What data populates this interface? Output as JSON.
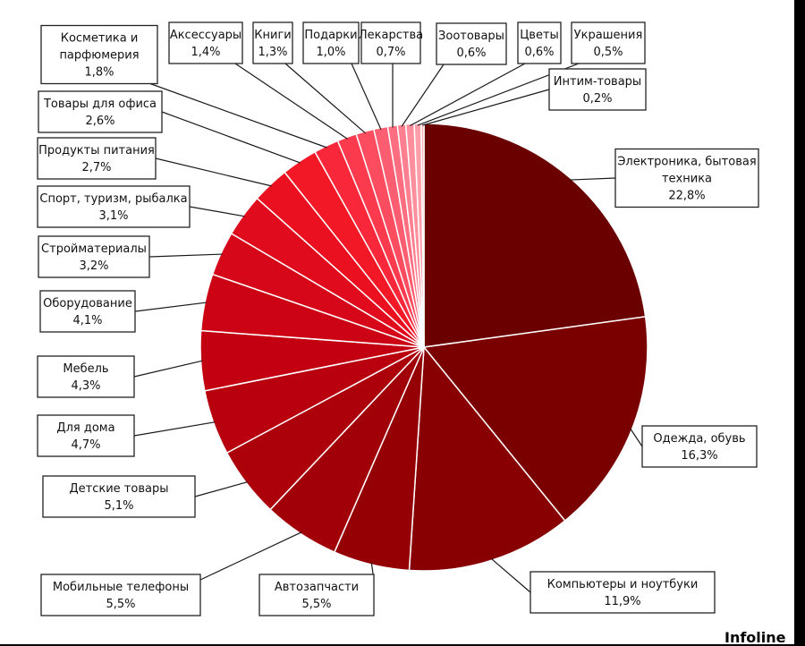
{
  "chart_data": {
    "type": "pie",
    "slices": [
      {
        "label": [
          "Электроника, бытовая",
          "техника"
        ],
        "value": 22.8,
        "display": "22,8%",
        "color": "#6a0000"
      },
      {
        "label": [
          "Одежда, обувь"
        ],
        "value": 16.3,
        "display": "16,3%",
        "color": "#7a0000"
      },
      {
        "label": [
          "Компьютеры и ноутбуки"
        ],
        "value": 11.9,
        "display": "11,9%",
        "color": "#890003"
      },
      {
        "label": [
          "Автозапчасти"
        ],
        "value": 5.5,
        "display": "5,5%",
        "color": "#950005"
      },
      {
        "label": [
          "Мобильные телефоны"
        ],
        "value": 5.5,
        "display": "5,5%",
        "color": "#a10008"
      },
      {
        "label": [
          "Детские товары"
        ],
        "value": 5.1,
        "display": "5,1%",
        "color": "#ac000b"
      },
      {
        "label": [
          "Для дома"
        ],
        "value": 4.7,
        "display": "4,7%",
        "color": "#b8000e"
      },
      {
        "label": [
          "Мебель"
        ],
        "value": 4.3,
        "display": "4,3%",
        "color": "#c20011"
      },
      {
        "label": [
          "Оборудование"
        ],
        "value": 4.1,
        "display": "4,1%",
        "color": "#cc0314"
      },
      {
        "label": [
          "Стройматериалы"
        ],
        "value": 3.2,
        "display": "3,2%",
        "color": "#d60718"
      },
      {
        "label": [
          "Спорт, туризм, рыбалка"
        ],
        "value": 3.1,
        "display": "3,1%",
        "color": "#e00b1c"
      },
      {
        "label": [
          "Продукты питания"
        ],
        "value": 2.7,
        "display": "2,7%",
        "color": "#ea1020"
      },
      {
        "label": [
          "Товары для офиса"
        ],
        "value": 2.6,
        "display": "2,6%",
        "color": "#f31826"
      },
      {
        "label": [
          "Косметика и",
          "парфюмерия"
        ],
        "value": 1.8,
        "display": "1,8%",
        "color": "#f8273a"
      },
      {
        "label": [
          "Аксессуары"
        ],
        "value": 1.4,
        "display": "1,4%",
        "color": "#fb3a4e"
      },
      {
        "label": [
          "Книги"
        ],
        "value": 1.3,
        "display": "1,3%",
        "color": "#fc4c60"
      },
      {
        "label": [
          "Подарки"
        ],
        "value": 1.0,
        "display": "1,0%",
        "color": "#fd5d70"
      },
      {
        "label": [
          "Лекарства"
        ],
        "value": 0.7,
        "display": "0,7%",
        "color": "#fe6e80"
      },
      {
        "label": [
          "Зоотовары"
        ],
        "value": 0.6,
        "display": "0,6%",
        "color": "#fe7f8f"
      },
      {
        "label": [
          "Цветы"
        ],
        "value": 0.6,
        "display": "0,6%",
        "color": "#ff8f9d"
      },
      {
        "label": [
          "Украшения"
        ],
        "value": 0.5,
        "display": "0,5%",
        "color": "#ff9faa"
      },
      {
        "label": [
          "Интим-товары"
        ],
        "value": 0.2,
        "display": "0,2%",
        "color": "#ffafb8"
      }
    ]
  },
  "brand": {
    "text": "Infoline"
  }
}
